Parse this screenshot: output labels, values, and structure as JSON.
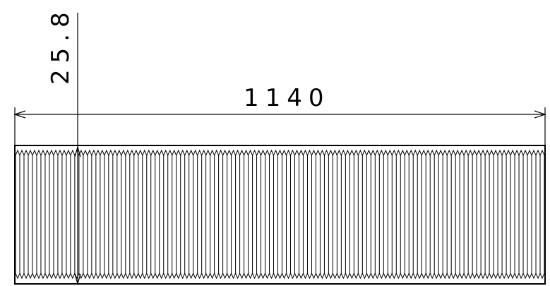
{
  "drawing": {
    "length_dimension": "1140",
    "diameter_dimension": "25.8",
    "thread_pitch_count": 125,
    "line_color": "#000000",
    "background_color": "#ffffff"
  }
}
